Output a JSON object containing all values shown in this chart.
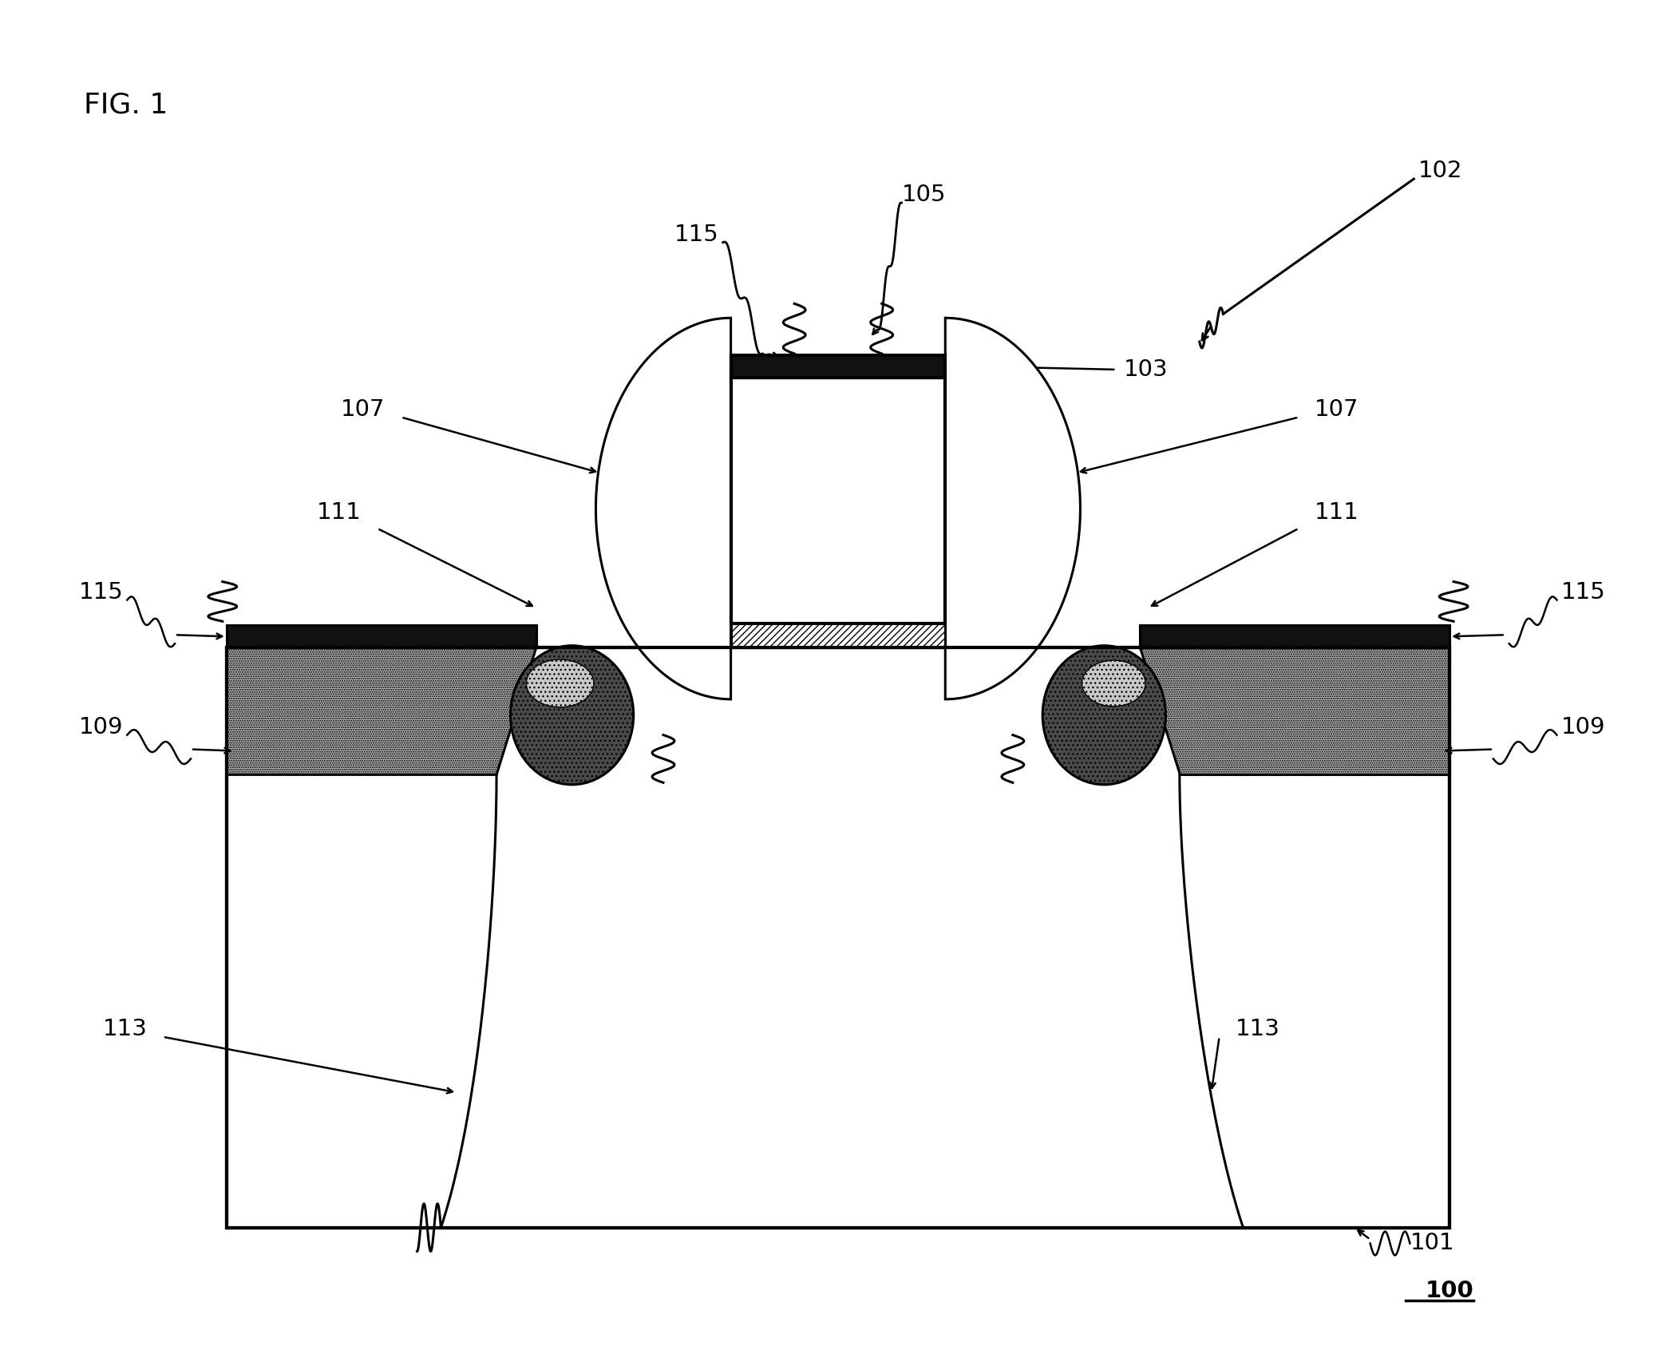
{
  "title": "FIG. 1",
  "label_100": "100",
  "label_101": "101",
  "label_102": "102",
  "label_103": "103",
  "label_105": "105",
  "label_107": "107",
  "label_109": "109",
  "label_111": "111",
  "label_113": "113",
  "label_115": "115",
  "bg_color": "#ffffff",
  "line_color": "#000000",
  "dark_fill": "#111111",
  "stipple_gray": "#b0b0b0",
  "light_gray": "#c8c8c8",
  "dark_gray_blob": "#4a4a4a",
  "medium_gray": "#909090"
}
